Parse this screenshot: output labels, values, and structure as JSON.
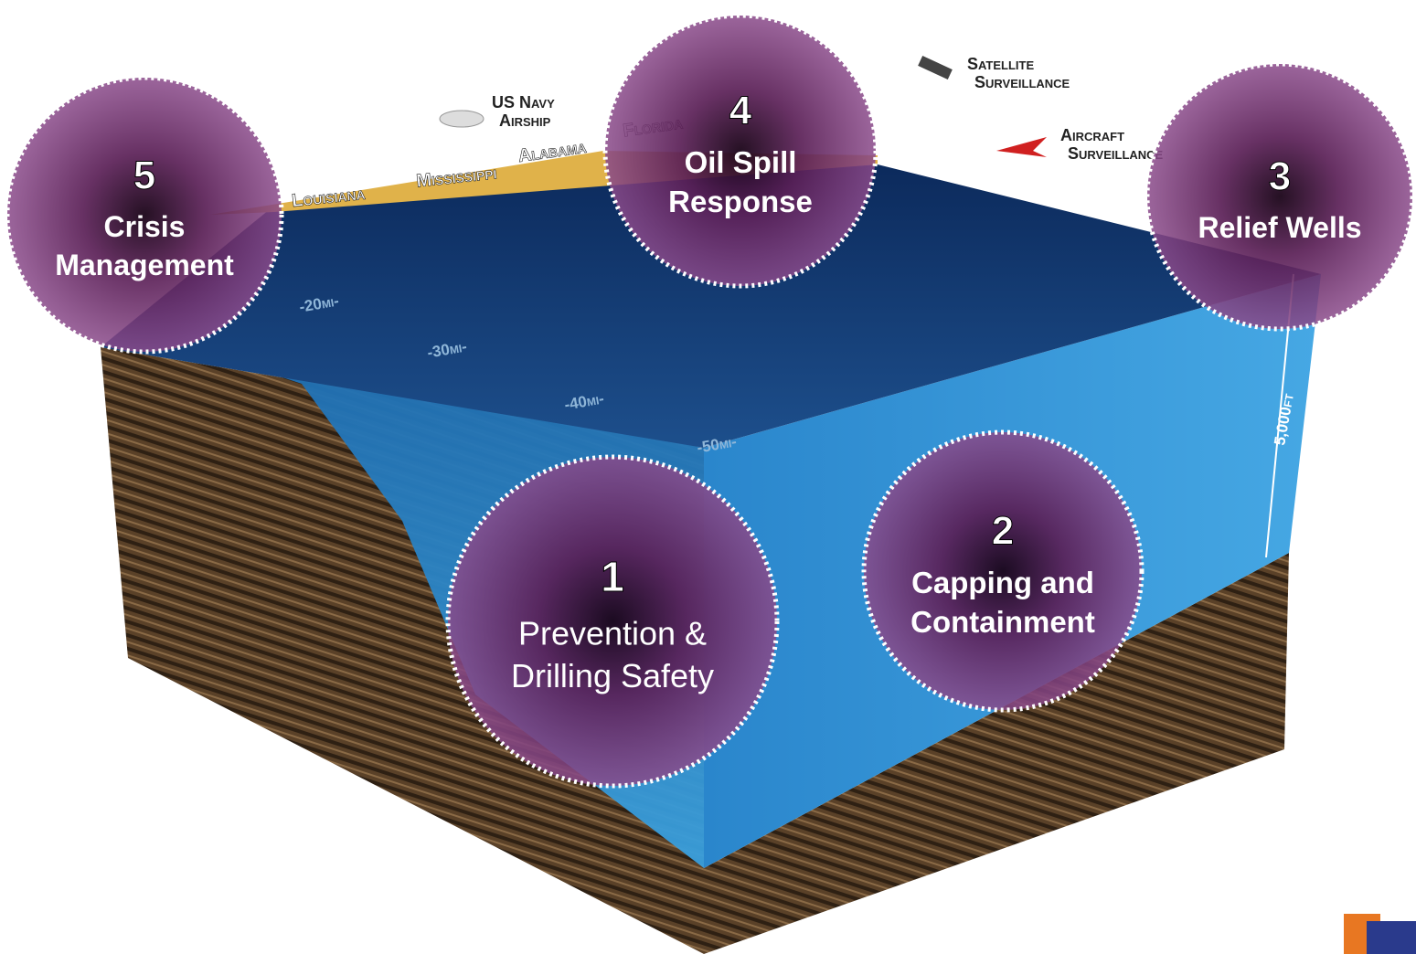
{
  "circles": [
    {
      "number": "1",
      "lines": [
        "Prevention &",
        "Drilling Safety"
      ]
    },
    {
      "number": "2",
      "lines": [
        "Capping and",
        "Containment"
      ]
    },
    {
      "number": "3",
      "lines": [
        "Relief Wells"
      ]
    },
    {
      "number": "4",
      "lines": [
        "Oil Spill",
        "Response"
      ]
    },
    {
      "number": "5",
      "lines": [
        "Crisis",
        "Management"
      ]
    }
  ],
  "surveillance": [
    {
      "lines": [
        "US Navy",
        "Airship"
      ]
    },
    {
      "lines": [
        "Satellite",
        "Surveillance"
      ]
    },
    {
      "lines": [
        "Aircraft",
        "Surveillance"
      ]
    }
  ],
  "states": [
    "Louisiana",
    "Mississippi",
    "Alabama",
    "Florida"
  ],
  "distances": [
    "-20mi-",
    "-30mi-",
    "-40mi-",
    "-50mi-"
  ],
  "depth": "5,000ft"
}
